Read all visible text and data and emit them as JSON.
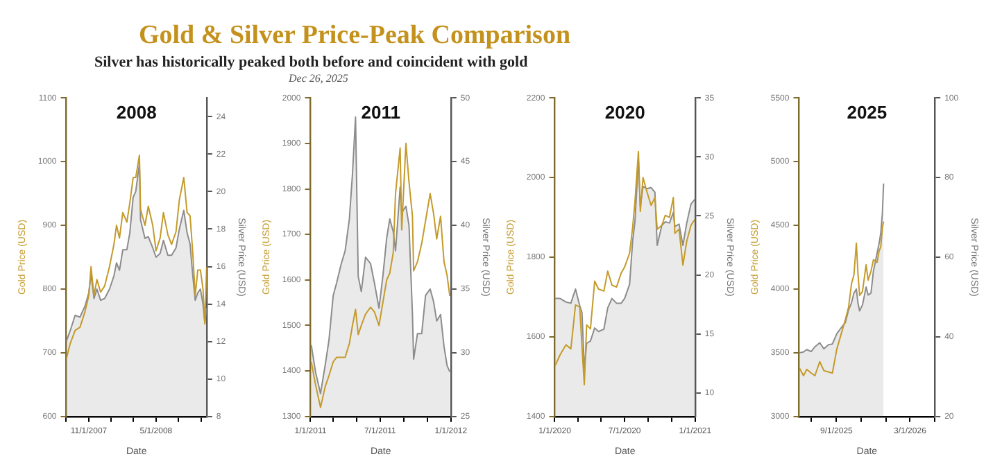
{
  "chart_data": [
    {
      "type": "other",
      "title": "Gold & Silver Price-Peak Comparison",
      "subtitle": "Silver has historically peaked both before and coincident with gold",
      "annotations": [
        "Dec 26, 2025"
      ],
      "color": "#c4921c"
    },
    {
      "type": "line",
      "title": "2008",
      "xlabel": "Date",
      "ylabel": "Gold Price (USD)",
      "y2label": "Silver Price (USD)",
      "grid": false,
      "legend": false,
      "marker": "none",
      "xlim": [
        "2007-09-01",
        "2008-09-15"
      ],
      "xticks": [
        {
          "value": "2007-09-01",
          "label": null
        },
        {
          "value": "2007-11-01",
          "label": "11/1/2007"
        },
        {
          "value": "2008-01-01",
          "label": null
        },
        {
          "value": "2008-03-01",
          "label": null
        },
        {
          "value": "2008-05-01",
          "label": "5/1/2008"
        },
        {
          "value": "2008-07-01",
          "label": null
        },
        {
          "value": "2008-09-01",
          "label": null
        }
      ],
      "ylim": [
        600,
        1100
      ],
      "yticks": [
        600,
        700,
        800,
        900,
        1000,
        1100
      ],
      "y2lim": [
        8,
        25
      ],
      "y2ticks": [
        8,
        10,
        12,
        14,
        16,
        18,
        20,
        22,
        24
      ],
      "x": [
        "2007-09-01",
        "2007-09-12",
        "2007-09-25",
        "2007-10-08",
        "2007-10-22",
        "2007-11-01",
        "2007-11-07",
        "2007-11-15",
        "2007-11-23",
        "2007-12-03",
        "2007-12-14",
        "2007-12-27",
        "2008-01-08",
        "2008-01-15",
        "2008-01-23",
        "2008-02-01",
        "2008-02-12",
        "2008-02-20",
        "2008-02-29",
        "2008-03-07",
        "2008-03-17",
        "2008-03-20",
        "2008-04-01",
        "2008-04-10",
        "2008-04-22",
        "2008-05-01",
        "2008-05-12",
        "2008-05-21",
        "2008-06-02",
        "2008-06-12",
        "2008-06-24",
        "2008-07-03",
        "2008-07-15",
        "2008-07-24",
        "2008-08-01",
        "2008-08-08",
        "2008-08-15",
        "2008-08-22",
        "2008-08-29",
        "2008-09-05",
        "2008-09-10",
        "2008-09-15"
      ],
      "series": [
        {
          "type": "area",
          "axis": "y2",
          "color": "#8c8c8c",
          "values": [
            12.0,
            12.6,
            13.4,
            13.3,
            13.9,
            14.6,
            15.6,
            14.3,
            14.8,
            14.2,
            14.3,
            14.8,
            15.5,
            16.2,
            15.8,
            16.9,
            16.9,
            17.8,
            19.7,
            20.0,
            21.5,
            18.5,
            17.5,
            17.6,
            17.0,
            16.5,
            16.7,
            17.4,
            16.6,
            16.6,
            17.0,
            18.0,
            19.0,
            17.8,
            17.2,
            15.6,
            14.2,
            14.6,
            14.8,
            14.0,
            13.0,
            13.8
          ]
        },
        {
          "type": "line",
          "axis": "y",
          "color": "#c49a2a",
          "values": [
            690,
            715,
            735,
            740,
            765,
            790,
            835,
            790,
            815,
            795,
            805,
            835,
            870,
            900,
            880,
            920,
            905,
            935,
            975,
            975,
            1010,
            925,
            900,
            930,
            900,
            860,
            880,
            920,
            885,
            870,
            890,
            940,
            975,
            920,
            915,
            860,
            790,
            830,
            830,
            800,
            745,
            835
          ]
        }
      ]
    },
    {
      "type": "line",
      "title": "2011",
      "xlabel": "Date",
      "ylabel": "Gold Price (USD)",
      "y2label": "Silver Price (USD)",
      "grid": false,
      "legend": false,
      "marker": "none",
      "xlim": [
        "2011-01-01",
        "2012-01-01"
      ],
      "xticks": [
        {
          "value": "2011-01-01",
          "label": "1/1/2011"
        },
        {
          "value": "2011-03-01",
          "label": null
        },
        {
          "value": "2011-05-01",
          "label": null
        },
        {
          "value": "2011-07-01",
          "label": "7/1/2011"
        },
        {
          "value": "2011-09-01",
          "label": null
        },
        {
          "value": "2011-11-01",
          "label": null
        },
        {
          "value": "2012-01-01",
          "label": "1/1/2012"
        }
      ],
      "ylim": [
        1300,
        2000
      ],
      "yticks": [
        1300,
        1400,
        1500,
        1600,
        1700,
        1800,
        1900,
        2000
      ],
      "y2lim": [
        25,
        50
      ],
      "y2ticks": [
        25,
        30,
        35,
        40,
        45,
        50
      ],
      "x": [
        "2011-01-03",
        "2011-01-14",
        "2011-01-27",
        "2011-02-08",
        "2011-02-18",
        "2011-03-01",
        "2011-03-10",
        "2011-03-22",
        "2011-04-01",
        "2011-04-12",
        "2011-04-20",
        "2011-04-28",
        "2011-05-05",
        "2011-05-13",
        "2011-05-24",
        "2011-06-06",
        "2011-06-16",
        "2011-06-28",
        "2011-07-08",
        "2011-07-18",
        "2011-07-26",
        "2011-08-04",
        "2011-08-10",
        "2011-08-22",
        "2011-08-26",
        "2011-09-06",
        "2011-09-14",
        "2011-09-23",
        "2011-09-26",
        "2011-10-06",
        "2011-10-17",
        "2011-10-27",
        "2011-11-08",
        "2011-11-17",
        "2011-11-25",
        "2011-12-05",
        "2011-12-14",
        "2011-12-22",
        "2011-12-29"
      ],
      "series": [
        {
          "type": "area",
          "axis": "y2",
          "color": "#8c8c8c",
          "values": [
            30.6,
            28.5,
            26.8,
            29.0,
            31.0,
            34.5,
            35.5,
            37.0,
            38.0,
            40.5,
            44.0,
            48.5,
            36.0,
            34.8,
            37.5,
            37.0,
            35.5,
            33.5,
            36.0,
            39.0,
            40.5,
            39.5,
            38.0,
            43.0,
            41.0,
            41.5,
            40.0,
            33.0,
            29.5,
            31.5,
            31.5,
            34.5,
            35.0,
            34.0,
            32.5,
            33.0,
            30.5,
            29.0,
            28.5
          ]
        },
        {
          "type": "line",
          "axis": "y",
          "color": "#c49a2a",
          "values": [
            1420,
            1370,
            1320,
            1365,
            1390,
            1420,
            1430,
            1430,
            1430,
            1460,
            1500,
            1535,
            1480,
            1500,
            1525,
            1540,
            1530,
            1500,
            1550,
            1600,
            1615,
            1660,
            1790,
            1890,
            1710,
            1900,
            1815,
            1740,
            1620,
            1640,
            1680,
            1730,
            1790,
            1745,
            1690,
            1740,
            1640,
            1610,
            1565
          ]
        }
      ]
    },
    {
      "type": "line",
      "title": "2020",
      "xlabel": "Date",
      "ylabel": "Gold Price (USD)",
      "y2label": "Silver Price (USD)",
      "grid": false,
      "legend": false,
      "marker": "none",
      "xlim": [
        "2020-01-01",
        "2021-01-01"
      ],
      "xticks": [
        {
          "value": "2020-01-01",
          "label": "1/1/2020"
        },
        {
          "value": "2020-03-01",
          "label": null
        },
        {
          "value": "2020-05-01",
          "label": null
        },
        {
          "value": "2020-07-01",
          "label": "7/1/2020"
        },
        {
          "value": "2020-09-01",
          "label": null
        },
        {
          "value": "2020-11-01",
          "label": null
        },
        {
          "value": "2021-01-01",
          "label": "1/1/2021"
        }
      ],
      "ylim": [
        1400,
        2200
      ],
      "yticks": [
        1400,
        1600,
        1800,
        2000,
        2200
      ],
      "y2lim": [
        8,
        35
      ],
      "y2ticks": [
        10,
        15,
        20,
        25,
        30,
        35
      ],
      "x": [
        "2020-01-02",
        "2020-01-15",
        "2020-01-30",
        "2020-02-12",
        "2020-02-24",
        "2020-03-06",
        "2020-03-12",
        "2020-03-18",
        "2020-03-24",
        "2020-04-03",
        "2020-04-14",
        "2020-04-24",
        "2020-05-08",
        "2020-05-18",
        "2020-05-29",
        "2020-06-10",
        "2020-06-22",
        "2020-07-01",
        "2020-07-14",
        "2020-07-22",
        "2020-07-28",
        "2020-08-06",
        "2020-08-11",
        "2020-08-18",
        "2020-08-28",
        "2020-09-08",
        "2020-09-18",
        "2020-09-24",
        "2020-10-06",
        "2020-10-15",
        "2020-10-26",
        "2020-11-05",
        "2020-11-09",
        "2020-11-20",
        "2020-11-30",
        "2020-12-10",
        "2020-12-21",
        "2020-12-31"
      ],
      "series": [
        {
          "type": "area",
          "axis": "y2",
          "color": "#8c8c8c",
          "values": [
            18.0,
            18.0,
            17.7,
            17.6,
            18.8,
            17.4,
            16.8,
            12.0,
            14.2,
            14.4,
            15.5,
            15.2,
            15.4,
            17.2,
            18.0,
            17.6,
            17.6,
            18.0,
            19.2,
            22.9,
            24.5,
            29.8,
            25.8,
            27.5,
            27.3,
            27.4,
            27.0,
            22.5,
            24.2,
            24.5,
            24.4,
            25.3,
            24.1,
            24.3,
            22.5,
            24.4,
            26.0,
            26.4
          ]
        },
        {
          "type": "line",
          "axis": "y",
          "color": "#c49a2a",
          "values": [
            1528,
            1555,
            1580,
            1570,
            1680,
            1675,
            1575,
            1480,
            1630,
            1620,
            1740,
            1720,
            1715,
            1765,
            1730,
            1725,
            1760,
            1775,
            1810,
            1875,
            1940,
            2065,
            1915,
            2000,
            1965,
            1930,
            1950,
            1870,
            1880,
            1905,
            1900,
            1950,
            1860,
            1870,
            1780,
            1840,
            1880,
            1895
          ]
        }
      ]
    },
    {
      "type": "line",
      "title": "2025",
      "xlabel": "Date",
      "ylabel": "Gold Price (USD)",
      "y2label": "Silver Price (USD)",
      "grid": false,
      "legend": false,
      "marker": "none",
      "xlim": [
        "2025-06-01",
        "2026-05-01"
      ],
      "xticks": [
        {
          "value": "2025-07-01",
          "label": null
        },
        {
          "value": "2025-09-01",
          "label": "9/1/2025"
        },
        {
          "value": "2025-11-01",
          "label": null
        },
        {
          "value": "2026-01-01",
          "label": null
        },
        {
          "value": "2026-03-01",
          "label": "3/1/2026"
        },
        {
          "value": "2026-05-01",
          "label": null
        }
      ],
      "ylim": [
        3000,
        5500
      ],
      "yticks": [
        3000,
        3500,
        4000,
        4500,
        5000,
        5500
      ],
      "y2lim": [
        20,
        100
      ],
      "y2ticks": [
        20,
        40,
        60,
        80,
        100
      ],
      "x": [
        "2025-06-02",
        "2025-06-12",
        "2025-06-20",
        "2025-07-01",
        "2025-07-10",
        "2025-07-22",
        "2025-08-01",
        "2025-08-12",
        "2025-08-22",
        "2025-09-02",
        "2025-09-12",
        "2025-09-23",
        "2025-10-01",
        "2025-10-08",
        "2025-10-14",
        "2025-10-20",
        "2025-10-24",
        "2025-10-28",
        "2025-11-04",
        "2025-11-13",
        "2025-11-18",
        "2025-11-25",
        "2025-12-01",
        "2025-12-10",
        "2025-12-15",
        "2025-12-19",
        "2025-12-23",
        "2025-12-26"
      ],
      "series": [
        {
          "type": "area",
          "axis": "y2",
          "color": "#8c8c8c",
          "values": [
            36.0,
            36.2,
            36.8,
            36.3,
            37.5,
            38.5,
            37.0,
            38.0,
            38.2,
            40.8,
            42.2,
            43.6,
            46.8,
            48.5,
            51.0,
            52.0,
            48.5,
            46.5,
            48.0,
            52.5,
            50.5,
            51.0,
            56.5,
            61.0,
            63.5,
            66.0,
            71.0,
            78.5
          ]
        },
        {
          "type": "line",
          "axis": "y",
          "color": "#c49a2a",
          "values": [
            3380,
            3320,
            3370,
            3340,
            3320,
            3430,
            3360,
            3350,
            3340,
            3530,
            3640,
            3760,
            3860,
            4040,
            4110,
            4360,
            4120,
            3950,
            3980,
            4190,
            4070,
            4140,
            4230,
            4210,
            4300,
            4330,
            4480,
            4530
          ]
        }
      ]
    }
  ]
}
